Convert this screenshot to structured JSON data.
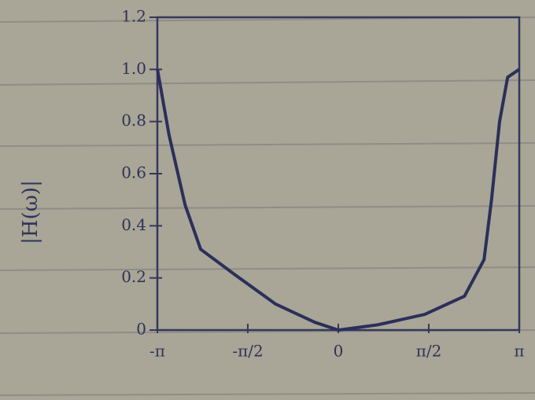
{
  "chart_data": {
    "type": "line",
    "y_label": "|H(ω)|",
    "x": [
      -3.14,
      -2.94,
      -2.66,
      -2.39,
      -1.78,
      -1.09,
      -0.41,
      0,
      0.68,
      1.5,
      2.19,
      2.53,
      2.66,
      2.8,
      2.94,
      3.14
    ],
    "series": [
      {
        "color": "#2b2f5a",
        "values": [
          1.0,
          0.75,
          0.48,
          0.31,
          0.21,
          0.1,
          0.03,
          0,
          0.02,
          0.06,
          0.13,
          0.27,
          0.5,
          0.8,
          0.97,
          1.0
        ]
      }
    ],
    "xlim": [
      -3.1416,
      3.1416
    ],
    "ylim": [
      0,
      1.2
    ],
    "xticks": [
      {
        "value": -3.1416,
        "label": "-π"
      },
      {
        "value": -1.5708,
        "label": "-π/2"
      },
      0,
      {
        "value": 1.5708,
        "label": "π/2"
      },
      {
        "value": 3.1416,
        "label": "π"
      }
    ],
    "yticks": [
      0,
      0.2,
      0.4,
      0.6,
      0.8,
      {
        "value": 1,
        "label": "1.0"
      },
      1.2
    ]
  }
}
